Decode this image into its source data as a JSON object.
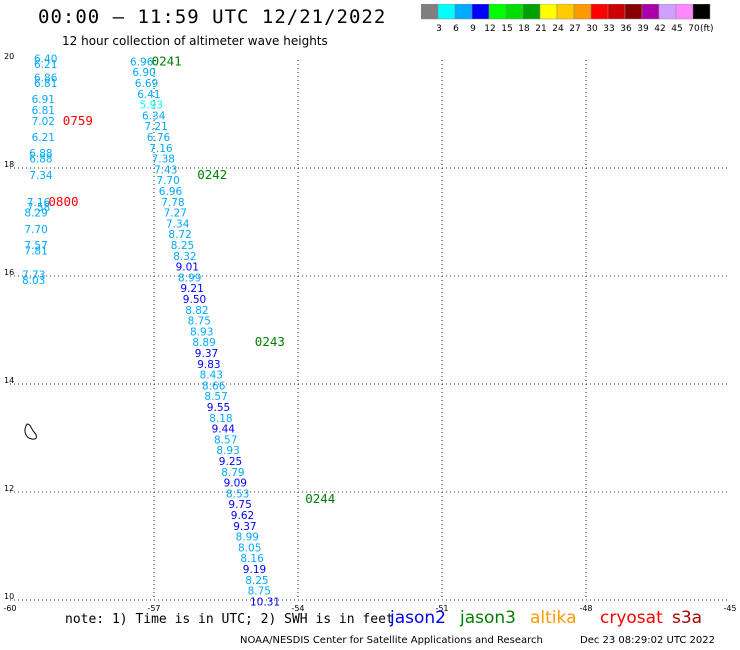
{
  "header": {
    "title": "00:00 – 11:59 UTC 12/21/2022",
    "subtitle": "12 hour collection of altimeter wave heights"
  },
  "colorbar": {
    "colors": [
      "#7f7f7f",
      "#00ffff",
      "#00aaff",
      "#0000ff",
      "#00ff00",
      "#00dd00",
      "#00a000",
      "#ffff00",
      "#ffcc00",
      "#ff9900",
      "#ff0000",
      "#cc0000",
      "#880000",
      "#aa00aa",
      "#d0a0ff",
      "#ff88ff",
      "#000000"
    ],
    "labels": [
      "3",
      "6",
      "9",
      "12",
      "15",
      "18",
      "21",
      "24",
      "27",
      "30",
      "33",
      "36",
      "39",
      "42",
      "45",
      "70"
    ],
    "unit": "(ft)"
  },
  "axes": {
    "x_ticks": [
      "-60",
      "-57",
      "-54",
      "-51",
      "-48",
      "-45"
    ],
    "y_ticks": [
      "20",
      "18",
      "16",
      "14",
      "12",
      "10"
    ]
  },
  "legend": {
    "note": "note: 1) Time is in UTC; 2) SWH is in feet",
    "satellites": [
      {
        "name": "jason2",
        "color": "#0000ff"
      },
      {
        "name": "jason3",
        "color": "#008000"
      },
      {
        "name": "altika",
        "color": "#ff9900"
      },
      {
        "name": "cryosat",
        "color": "#ff0000"
      },
      {
        "name": "s3a",
        "color": "#aa0000"
      }
    ]
  },
  "credit": "NOAA/NESDIS Center for Satellite Applications and Research",
  "timestamp": "Dec 23 08:29:02 UTC 2022",
  "pass_labels": [
    {
      "text": "0241",
      "lon": -57.05,
      "lat": 19.9,
      "color": "#008000"
    },
    {
      "text": "0242",
      "lon": -56.1,
      "lat": 17.8,
      "color": "#008000"
    },
    {
      "text": "0243",
      "lon": -54.9,
      "lat": 14.7,
      "color": "#008000"
    },
    {
      "text": "0244",
      "lon": -53.85,
      "lat": 11.8,
      "color": "#008000"
    },
    {
      "text": "0759",
      "lon": -58.9,
      "lat": 18.8,
      "color": "#ff0000"
    },
    {
      "text": "0800",
      "lon": -59.2,
      "lat": 17.3,
      "color": "#ff0000"
    }
  ],
  "chart_data": {
    "type": "scatter",
    "title": "00:00 – 11:59 UTC 12/21/2022",
    "xlim": [
      -60,
      -45
    ],
    "ylim": [
      10,
      20
    ],
    "grid": true,
    "tracks": [
      {
        "satellite": "jason3",
        "points": [
          {
            "lon": -57.5,
            "lat": 19.9,
            "swh": "6.96"
          },
          {
            "lon": -57.45,
            "lat": 19.7,
            "swh": "6.90"
          },
          {
            "lon": -57.4,
            "lat": 19.5,
            "swh": "6.69"
          },
          {
            "lon": -57.35,
            "lat": 19.3,
            "swh": "6.41"
          },
          {
            "lon": -57.3,
            "lat": 19.1,
            "swh": "5.93"
          },
          {
            "lon": -57.25,
            "lat": 18.9,
            "swh": "6.34"
          },
          {
            "lon": -57.2,
            "lat": 18.7,
            "swh": "7.21"
          },
          {
            "lon": -57.15,
            "lat": 18.5,
            "swh": "6.76"
          },
          {
            "lon": -57.1,
            "lat": 18.3,
            "swh": "7.16"
          },
          {
            "lon": -57.05,
            "lat": 18.1,
            "swh": "7.38"
          },
          {
            "lon": -57.0,
            "lat": 17.9,
            "swh": "7.43"
          },
          {
            "lon": -56.95,
            "lat": 17.7,
            "swh": "7.70"
          },
          {
            "lon": -56.9,
            "lat": 17.5,
            "swh": "6.96"
          },
          {
            "lon": -56.85,
            "lat": 17.3,
            "swh": "7.78"
          },
          {
            "lon": -56.8,
            "lat": 17.1,
            "swh": "7.27"
          },
          {
            "lon": -56.75,
            "lat": 16.9,
            "swh": "7.34"
          },
          {
            "lon": -56.7,
            "lat": 16.7,
            "swh": "8.72"
          },
          {
            "lon": -56.65,
            "lat": 16.5,
            "swh": "8.25"
          },
          {
            "lon": -56.6,
            "lat": 16.3,
            "swh": "8.32"
          },
          {
            "lon": -56.55,
            "lat": 16.1,
            "swh": "9.01"
          },
          {
            "lon": -56.5,
            "lat": 15.9,
            "swh": "8.99"
          },
          {
            "lon": -56.45,
            "lat": 15.7,
            "swh": "9.21"
          },
          {
            "lon": -56.4,
            "lat": 15.5,
            "swh": "9.50"
          },
          {
            "lon": -56.35,
            "lat": 15.3,
            "swh": "8.82"
          },
          {
            "lon": -56.3,
            "lat": 15.1,
            "swh": "8.75"
          },
          {
            "lon": -56.25,
            "lat": 14.9,
            "swh": "8.93"
          },
          {
            "lon": -56.2,
            "lat": 14.7,
            "swh": "8.89"
          },
          {
            "lon": -56.15,
            "lat": 14.5,
            "swh": "9.37"
          },
          {
            "lon": -56.1,
            "lat": 14.3,
            "swh": "9.83"
          },
          {
            "lon": -56.05,
            "lat": 14.1,
            "swh": "8.43"
          },
          {
            "lon": -56.0,
            "lat": 13.9,
            "swh": "8.66"
          },
          {
            "lon": -55.95,
            "lat": 13.7,
            "swh": "8.57"
          },
          {
            "lon": -55.9,
            "lat": 13.5,
            "swh": "9.55"
          },
          {
            "lon": -55.85,
            "lat": 13.3,
            "swh": "8.18"
          },
          {
            "lon": -55.8,
            "lat": 13.1,
            "swh": "9.44"
          },
          {
            "lon": -55.75,
            "lat": 12.9,
            "swh": "8.57"
          },
          {
            "lon": -55.7,
            "lat": 12.7,
            "swh": "8.93"
          },
          {
            "lon": -55.65,
            "lat": 12.5,
            "swh": "9.25"
          },
          {
            "lon": -55.6,
            "lat": 12.3,
            "swh": "8.79"
          },
          {
            "lon": -55.55,
            "lat": 12.1,
            "swh": "9.09"
          },
          {
            "lon": -55.5,
            "lat": 11.9,
            "swh": "8.53"
          },
          {
            "lon": -55.45,
            "lat": 11.7,
            "swh": "9.75"
          },
          {
            "lon": -55.4,
            "lat": 11.5,
            "swh": "9.62"
          },
          {
            "lon": -55.35,
            "lat": 11.3,
            "swh": "9.37"
          },
          {
            "lon": -55.3,
            "lat": 11.1,
            "swh": "8.99"
          },
          {
            "lon": -55.25,
            "lat": 10.9,
            "swh": "8.05"
          },
          {
            "lon": -55.2,
            "lat": 10.7,
            "swh": "8.16"
          },
          {
            "lon": -55.15,
            "lat": 10.5,
            "swh": "9.19"
          },
          {
            "lon": -55.1,
            "lat": 10.3,
            "swh": "8.25"
          },
          {
            "lon": -55.05,
            "lat": 10.1,
            "swh": "8.75"
          },
          {
            "lon": -55.0,
            "lat": 9.9,
            "swh": "10.31"
          }
        ]
      },
      {
        "satellite": "cryosat",
        "points": [
          {
            "lon": -59.5,
            "lat": 19.95,
            "swh": "6.40"
          },
          {
            "lon": -59.5,
            "lat": 19.85,
            "swh": "6.21"
          },
          {
            "lon": -59.5,
            "lat": 19.6,
            "swh": "6.86"
          },
          {
            "lon": -59.5,
            "lat": 19.5,
            "swh": "6.81"
          },
          {
            "lon": -59.55,
            "lat": 19.2,
            "swh": "6.91"
          },
          {
            "lon": -59.55,
            "lat": 19.0,
            "swh": "6.81"
          },
          {
            "lon": -59.55,
            "lat": 18.8,
            "swh": "7.02"
          },
          {
            "lon": -59.55,
            "lat": 18.5,
            "swh": "6.21"
          },
          {
            "lon": -59.6,
            "lat": 18.2,
            "swh": "6.88"
          },
          {
            "lon": -59.6,
            "lat": 18.1,
            "swh": "6.88"
          },
          {
            "lon": -59.6,
            "lat": 17.8,
            "swh": "7.34"
          },
          {
            "lon": -59.65,
            "lat": 17.3,
            "swh": "7.16"
          },
          {
            "lon": -59.65,
            "lat": 17.2,
            "swh": "7.58"
          },
          {
            "lon": -59.7,
            "lat": 17.1,
            "swh": "8.29"
          },
          {
            "lon": -59.7,
            "lat": 16.8,
            "swh": "7.70"
          },
          {
            "lon": -59.7,
            "lat": 16.5,
            "swh": "7.57"
          },
          {
            "lon": -59.7,
            "lat": 16.4,
            "swh": "7.81"
          },
          {
            "lon": -59.75,
            "lat": 15.95,
            "swh": "7.73"
          },
          {
            "lon": -59.75,
            "lat": 15.85,
            "swh": "8.03"
          }
        ]
      }
    ]
  }
}
